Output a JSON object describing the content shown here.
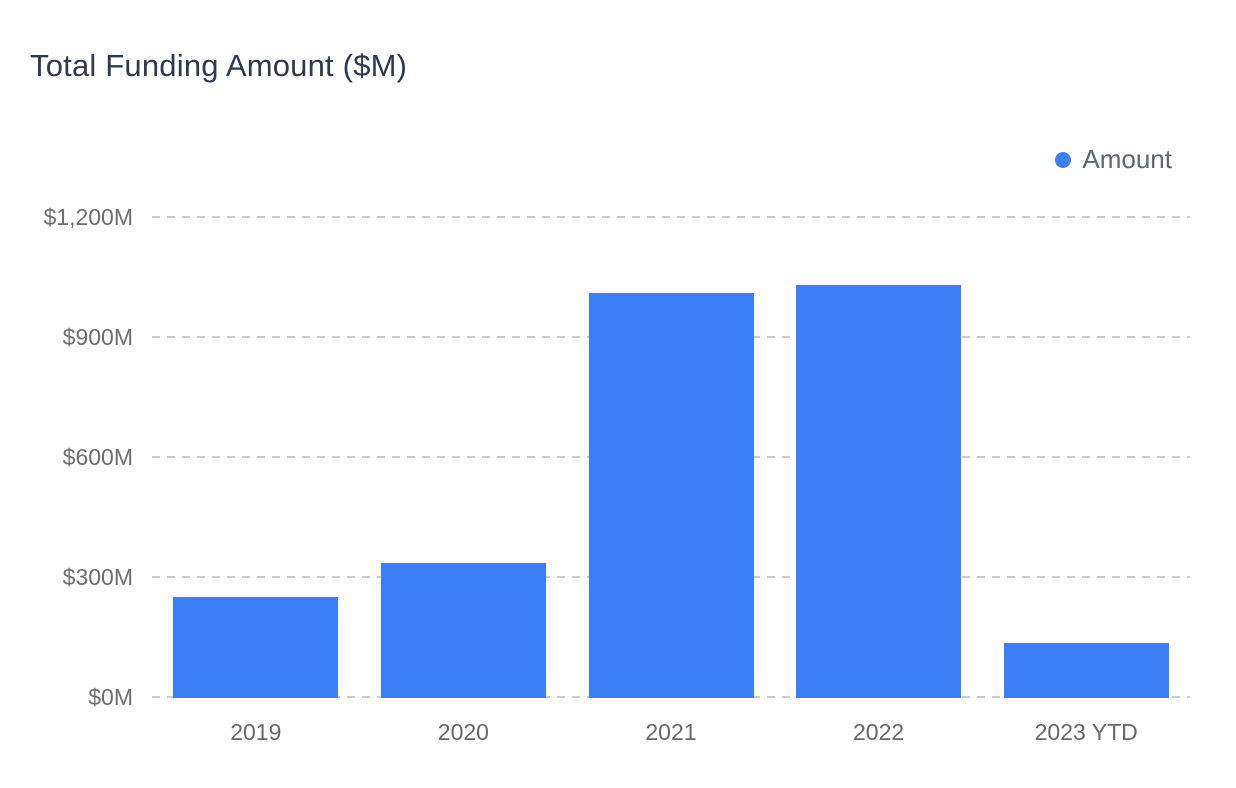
{
  "page": {
    "background": "#ffffff"
  },
  "chart_data": {
    "type": "bar",
    "title": "Total Funding Amount ($M)",
    "categories": [
      "2019",
      "2020",
      "2021",
      "2022",
      "2023 YTD"
    ],
    "series": [
      {
        "name": "Amount",
        "values": [
          250,
          335,
          1010,
          1030,
          135
        ],
        "color": "#3b7ff4"
      }
    ],
    "xlabel": "",
    "ylabel": "",
    "ylim": [
      0,
      1200
    ],
    "yticks": [
      {
        "value": 0,
        "label": "$0M"
      },
      {
        "value": 300,
        "label": "$300M"
      },
      {
        "value": 600,
        "label": "$600M"
      },
      {
        "value": 900,
        "label": "$900M"
      },
      {
        "value": 1200,
        "label": "$1,200M"
      }
    ],
    "grid": "horizontal-dashed",
    "legend_position": "top-right",
    "colors": {
      "bar": "#3b7ff4",
      "grid_line": "#cbcbcb",
      "title_text": "#2e3a4e",
      "axis_text": "#6e6e6e",
      "legend_text": "#5d6674"
    }
  }
}
